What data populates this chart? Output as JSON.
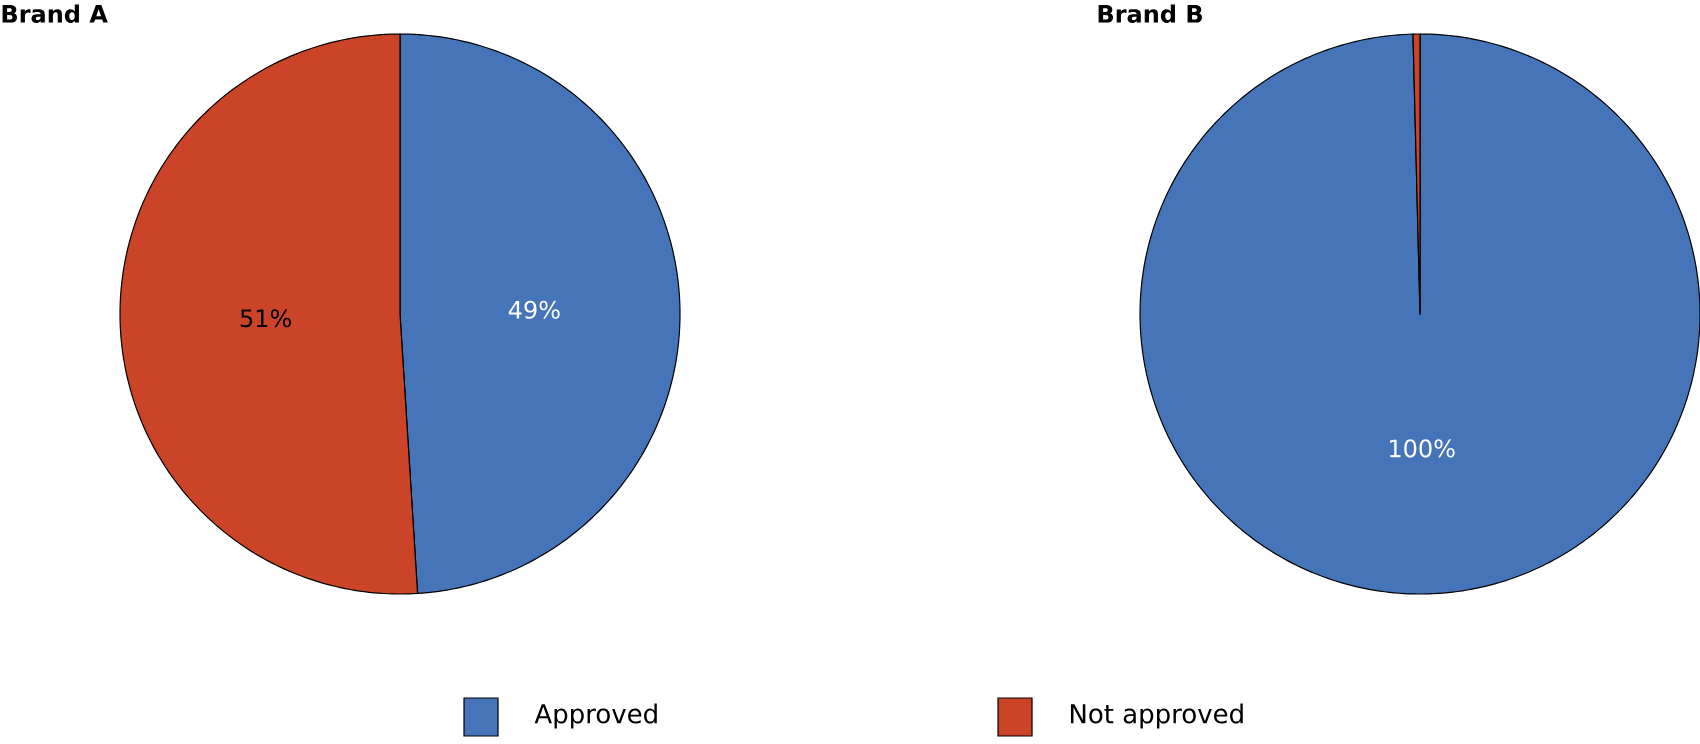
{
  "chart_data": [
    {
      "type": "pie",
      "title": "Brand A",
      "categories": [
        "Approved",
        "Not approved"
      ],
      "values": [
        49,
        51
      ],
      "colors": [
        "#4674b9",
        "#cc4428"
      ],
      "value_labels": [
        "49%",
        "51%"
      ],
      "legend": "bottom"
    },
    {
      "type": "pie",
      "title": "Brand B",
      "categories": [
        null,
        null
      ],
      "values": [
        99.6,
        0.4
      ],
      "colors": [
        "#4674b9",
        "#cc4428"
      ],
      "value_labels": [
        "100%",
        null
      ]
    }
  ]
}
